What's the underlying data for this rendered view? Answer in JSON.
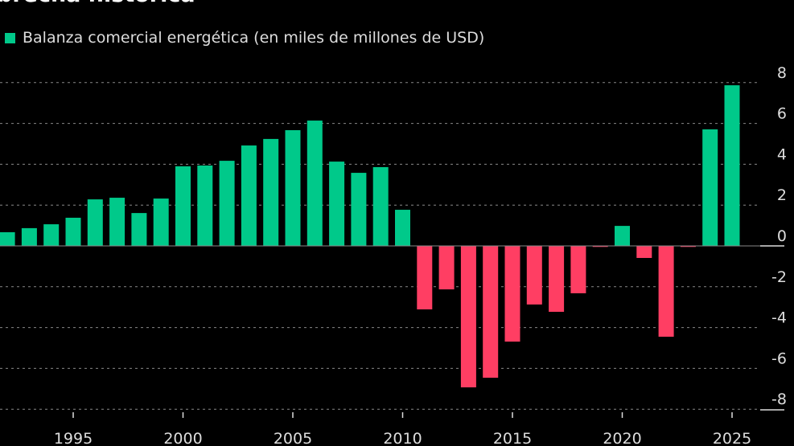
{
  "title": "brecha histórica",
  "chart_data": {
    "type": "bar",
    "title": "brecha histórica",
    "xlabel": "",
    "ylabel": "",
    "legend": {
      "position": "top-left",
      "entries": [
        "Balanza comercial energética (en miles de millones de USD)"
      ]
    },
    "ylim": [
      -9,
      8
    ],
    "yticks": [
      8,
      6,
      4,
      2,
      0,
      -2,
      -4,
      -6,
      -8
    ],
    "xticks": [
      1995,
      2000,
      2005,
      2010,
      2015,
      2020,
      2025
    ],
    "grid": true,
    "colors": {
      "positive": "#00c98a",
      "negative": "#ff3e63"
    },
    "series": [
      {
        "name": "Balanza comercial energética (en miles de millones de USD)",
        "x": [
          1992,
          1993,
          1994,
          1995,
          1996,
          1997,
          1998,
          1999,
          2000,
          2001,
          2002,
          2003,
          2004,
          2005,
          2006,
          2007,
          2008,
          2009,
          2010,
          2011,
          2012,
          2013,
          2014,
          2015,
          2016,
          2017,
          2018,
          2019,
          2020,
          2021,
          2022,
          2023,
          2024,
          2025
        ],
        "values": [
          0.67,
          0.87,
          1.06,
          1.38,
          2.28,
          2.36,
          1.61,
          2.32,
          3.9,
          3.94,
          4.17,
          4.92,
          5.24,
          5.67,
          6.14,
          4.13,
          3.58,
          3.86,
          1.77,
          -3.11,
          -2.13,
          -6.93,
          -6.46,
          -4.69,
          -2.87,
          -3.23,
          -2.32,
          -0.05,
          0.98,
          -0.59,
          -4.45,
          -0.05,
          5.71,
          7.87
        ]
      }
    ]
  }
}
